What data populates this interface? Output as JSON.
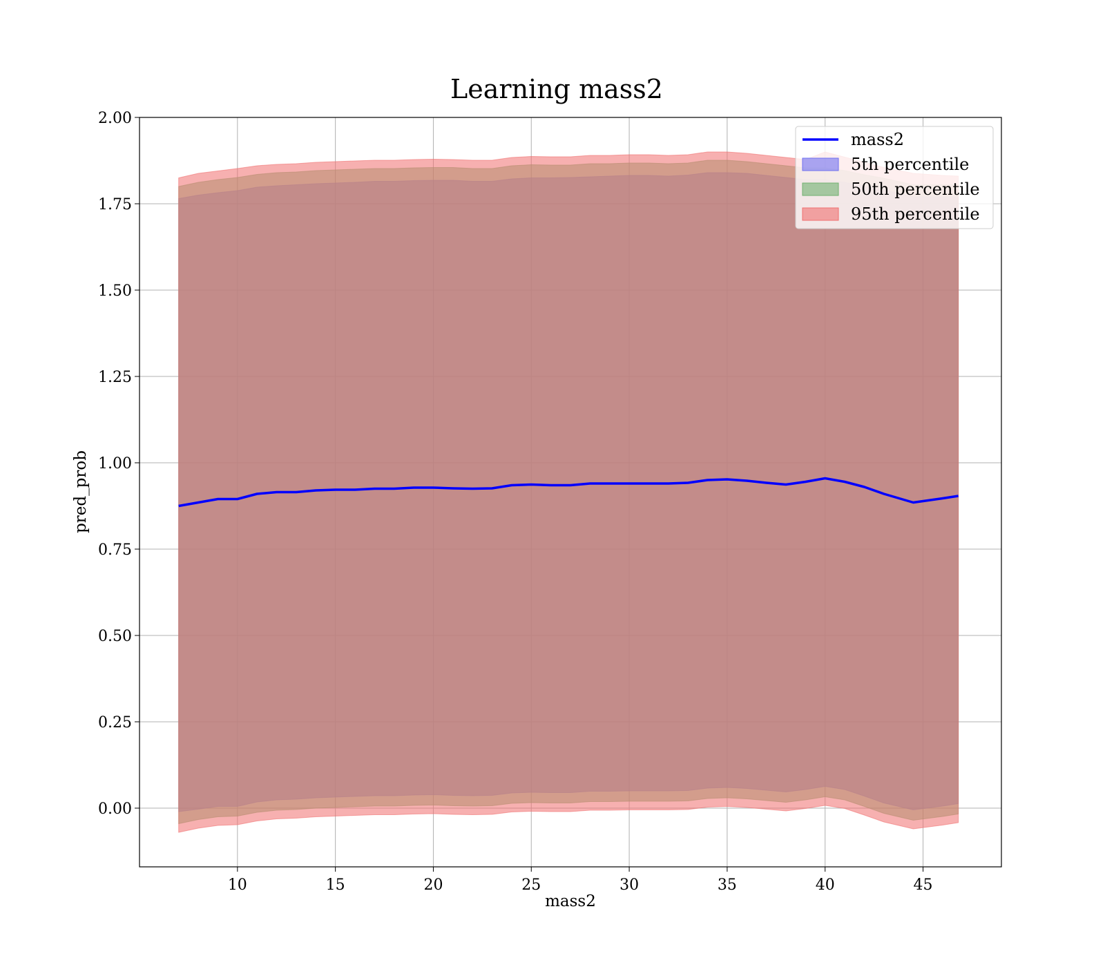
{
  "chart_data": {
    "type": "area",
    "title": "Learning mass2",
    "xlabel": "mass2",
    "ylabel": "pred_prob",
    "xlim": [
      5,
      49
    ],
    "ylim": [
      -0.17,
      2.0
    ],
    "grid": true,
    "legend_position": "top-right",
    "x_ticks": [
      10,
      15,
      20,
      25,
      30,
      35,
      40,
      45
    ],
    "y_ticks": [
      0.0,
      0.25,
      0.5,
      0.75,
      1.0,
      1.25,
      1.5,
      1.75,
      2.0
    ],
    "x_tick_labels": [
      "10",
      "15",
      "20",
      "25",
      "30",
      "35",
      "40",
      "45"
    ],
    "y_tick_labels": [
      "0.00",
      "0.25",
      "0.50",
      "0.75",
      "1.00",
      "1.25",
      "1.50",
      "1.75",
      "2.00"
    ],
    "x": [
      7.0,
      8.0,
      9.0,
      10.0,
      11.0,
      12.0,
      13.0,
      14.0,
      15.0,
      16.0,
      17.0,
      18.0,
      19.0,
      20.0,
      21.0,
      22.0,
      23.0,
      24.0,
      25.0,
      26.0,
      27.0,
      28.0,
      29.0,
      30.0,
      31.0,
      32.0,
      33.0,
      34.0,
      35.0,
      36.0,
      37.0,
      38.0,
      39.0,
      40.0,
      41.0,
      42.0,
      43.0,
      44.5,
      46.0,
      46.8
    ],
    "series": [
      {
        "name": "mass2",
        "kind": "line",
        "color": "#0000ff",
        "values": [
          0.875,
          0.885,
          0.895,
          0.895,
          0.91,
          0.915,
          0.915,
          0.92,
          0.922,
          0.922,
          0.925,
          0.925,
          0.928,
          0.928,
          0.926,
          0.925,
          0.926,
          0.935,
          0.937,
          0.935,
          0.935,
          0.94,
          0.94,
          0.94,
          0.94,
          0.94,
          0.942,
          0.95,
          0.952,
          0.948,
          0.942,
          0.937,
          0.945,
          0.955,
          0.945,
          0.93,
          0.91,
          0.885,
          0.897,
          0.904
        ]
      },
      {
        "name": "5th percentile",
        "kind": "band",
        "color": "#7070f0",
        "upper": [
          1.765,
          1.775,
          1.782,
          1.788,
          1.798,
          1.802,
          1.805,
          1.808,
          1.81,
          1.812,
          1.815,
          1.815,
          1.817,
          1.818,
          1.818,
          1.815,
          1.815,
          1.822,
          1.825,
          1.825,
          1.826,
          1.828,
          1.83,
          1.832,
          1.832,
          1.83,
          1.833,
          1.84,
          1.84,
          1.838,
          1.832,
          1.826,
          1.82,
          1.82,
          1.812,
          1.8,
          1.79,
          1.77,
          1.77,
          1.77
        ],
        "lower": [
          -0.01,
          -0.003,
          0.005,
          0.005,
          0.018,
          0.024,
          0.026,
          0.03,
          0.032,
          0.034,
          0.036,
          0.036,
          0.038,
          0.039,
          0.037,
          0.036,
          0.037,
          0.044,
          0.046,
          0.045,
          0.045,
          0.049,
          0.049,
          0.05,
          0.05,
          0.05,
          0.051,
          0.058,
          0.06,
          0.057,
          0.052,
          0.047,
          0.054,
          0.063,
          0.054,
          0.035,
          0.015,
          -0.005,
          0.006,
          0.013
        ]
      },
      {
        "name": "50th percentile",
        "kind": "band",
        "color": "#70b070",
        "upper": [
          1.8,
          1.812,
          1.82,
          1.826,
          1.835,
          1.84,
          1.842,
          1.846,
          1.848,
          1.85,
          1.852,
          1.852,
          1.854,
          1.855,
          1.855,
          1.852,
          1.852,
          1.86,
          1.863,
          1.862,
          1.862,
          1.866,
          1.866,
          1.868,
          1.868,
          1.866,
          1.868,
          1.876,
          1.876,
          1.872,
          1.866,
          1.86,
          1.854,
          1.854,
          1.846,
          1.834,
          1.824,
          1.805,
          1.805,
          1.805
        ],
        "lower": [
          -0.045,
          -0.033,
          -0.025,
          -0.023,
          -0.012,
          -0.006,
          -0.004,
          0.0,
          0.002,
          0.004,
          0.006,
          0.006,
          0.008,
          0.009,
          0.007,
          0.006,
          0.007,
          0.014,
          0.016,
          0.015,
          0.015,
          0.019,
          0.019,
          0.02,
          0.02,
          0.02,
          0.021,
          0.028,
          0.03,
          0.027,
          0.022,
          0.017,
          0.024,
          0.033,
          0.024,
          0.005,
          -0.015,
          -0.035,
          -0.024,
          -0.017
        ]
      },
      {
        "name": "95th percentile",
        "kind": "band",
        "color": "#f07070",
        "upper": [
          1.825,
          1.838,
          1.845,
          1.852,
          1.86,
          1.864,
          1.866,
          1.87,
          1.872,
          1.874,
          1.876,
          1.876,
          1.878,
          1.879,
          1.878,
          1.876,
          1.876,
          1.884,
          1.887,
          1.886,
          1.886,
          1.89,
          1.89,
          1.892,
          1.892,
          1.89,
          1.892,
          1.9,
          1.9,
          1.896,
          1.89,
          1.884,
          1.878,
          1.9,
          1.885,
          1.87,
          1.855,
          1.838,
          1.832,
          1.83
        ],
        "lower": [
          -0.07,
          -0.058,
          -0.05,
          -0.048,
          -0.037,
          -0.031,
          -0.029,
          -0.025,
          -0.023,
          -0.021,
          -0.019,
          -0.019,
          -0.017,
          -0.016,
          -0.018,
          -0.019,
          -0.018,
          -0.011,
          -0.009,
          -0.01,
          -0.01,
          -0.006,
          -0.006,
          -0.005,
          -0.005,
          -0.005,
          -0.004,
          0.003,
          0.005,
          0.002,
          -0.003,
          -0.008,
          -0.001,
          0.008,
          -0.001,
          -0.02,
          -0.04,
          -0.06,
          -0.049,
          -0.042
        ]
      }
    ]
  }
}
